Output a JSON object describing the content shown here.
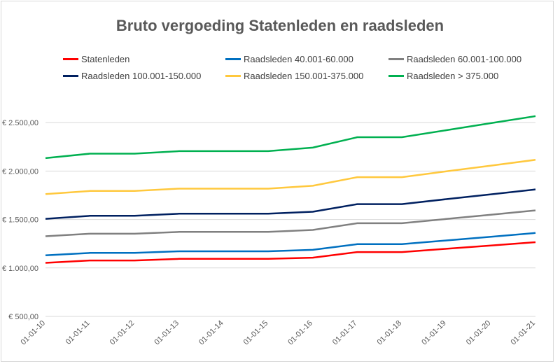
{
  "chart_data": {
    "type": "line",
    "title": "Bruto vergoeding Statenleden en raadsleden",
    "xlabel": "",
    "ylabel": "",
    "categories": [
      "01-01-10",
      "01-01-11",
      "01-01-12",
      "01-01-13",
      "01-01-14",
      "01-01-15",
      "01-01-16",
      "01-01-17",
      "01-01-18",
      "01-01-19",
      "01-01-20",
      "01-01-21"
    ],
    "ylim": [
      500,
      2750
    ],
    "yticks": [
      500,
      1000,
      1500,
      2000,
      2500
    ],
    "ytick_labels": [
      "€ 500,00",
      "€ 1.000,00",
      "€ 1.500,00",
      "€ 2.000,00",
      "€ 2.500,00"
    ],
    "grid": true,
    "legend_position": "top",
    "series": [
      {
        "name": "Statenleden",
        "color": "#ff0000",
        "values": [
          1053,
          1077,
          1077,
          1094,
          1094,
          1094,
          1106,
          1164,
          1164,
          1198,
          1232,
          1266
        ]
      },
      {
        "name": "Raadsleden 40.001-60.000",
        "color": "#0070c0",
        "values": [
          1130,
          1155,
          1155,
          1172,
          1172,
          1172,
          1187,
          1246,
          1246,
          1284,
          1322,
          1361
        ]
      },
      {
        "name": "Raadsleden 60.001-100.000",
        "color": "#808080",
        "values": [
          1327,
          1353,
          1353,
          1372,
          1372,
          1372,
          1392,
          1462,
          1462,
          1506,
          1550,
          1594
        ]
      },
      {
        "name": "Raadsleden 100.001-150.000",
        "color": "#002060",
        "values": [
          1507,
          1538,
          1538,
          1560,
          1560,
          1560,
          1580,
          1659,
          1659,
          1710,
          1760,
          1811
        ]
      },
      {
        "name": "Raadsleden 150.001-375.000",
        "color": "#ffc83d",
        "values": [
          1762,
          1795,
          1795,
          1819,
          1819,
          1819,
          1848,
          1937,
          1937,
          1997,
          2056,
          2116
        ]
      },
      {
        "name": "Raadsleden > 375.000",
        "color": "#00b050",
        "values": [
          2134,
          2180,
          2180,
          2206,
          2206,
          2206,
          2242,
          2350,
          2350,
          2422,
          2495,
          2567
        ]
      }
    ]
  }
}
